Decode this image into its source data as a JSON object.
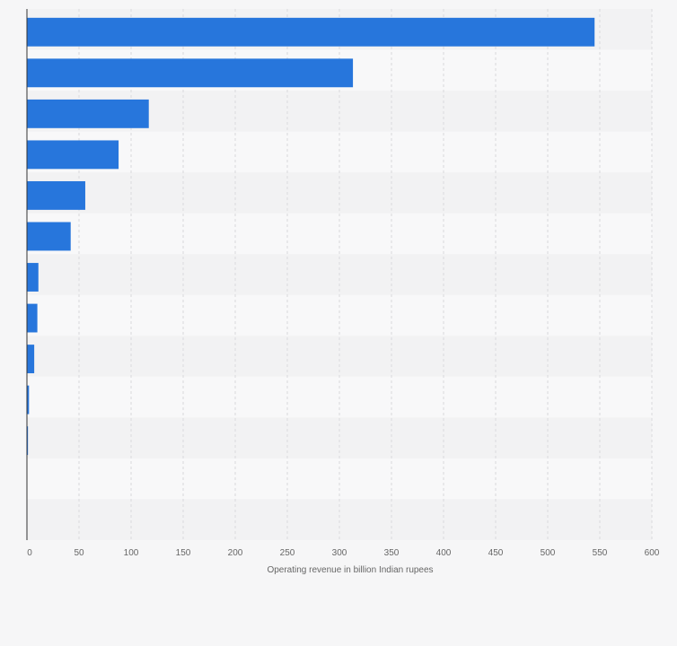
{
  "chart_data": {
    "type": "bar",
    "orientation": "horizontal",
    "categories": [
      "",
      "",
      "",
      "",
      "",
      "",
      "",
      "",
      "",
      "",
      "",
      "",
      ""
    ],
    "values": [
      545,
      313,
      117,
      88,
      56,
      42,
      11,
      10,
      7,
      2,
      1,
      0,
      0
    ],
    "xlabel": "Operating revenue in billion Indian rupees",
    "ylabel": "",
    "xlim": [
      0,
      600
    ],
    "xticks": [
      0,
      50,
      100,
      150,
      200,
      250,
      300,
      350,
      400,
      450,
      500,
      550,
      600
    ],
    "grid": true,
    "bar_color": "#2776dc"
  }
}
